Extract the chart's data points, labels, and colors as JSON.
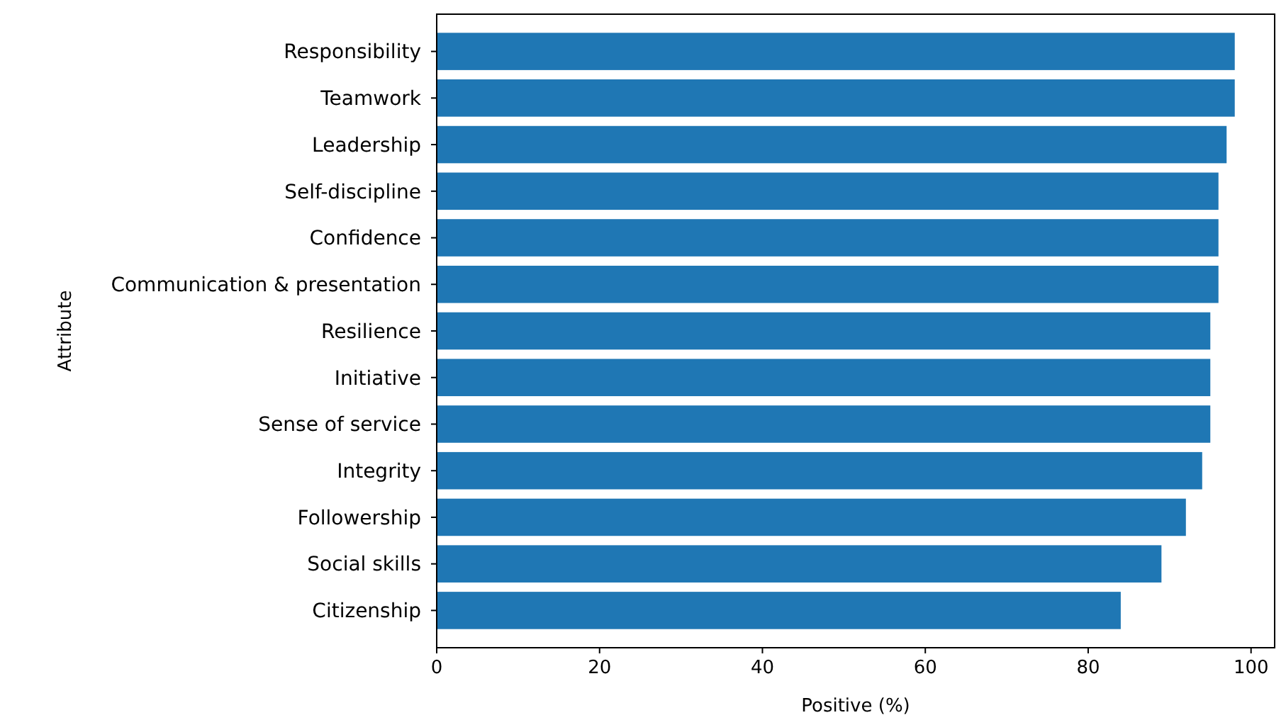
{
  "chart_data": {
    "type": "bar",
    "orientation": "horizontal",
    "xlabel": "Positive (%)",
    "ylabel": "Attribute",
    "categories": [
      "Responsibility",
      "Teamwork",
      "Leadership",
      "Self-discipline",
      "Confidence",
      "Communication & presentation",
      "Resilience",
      "Initiative",
      "Sense of service",
      "Integrity",
      "Followership",
      "Social skills",
      "Citizenship"
    ],
    "values": [
      98,
      98,
      97,
      96,
      96,
      96,
      95,
      95,
      95,
      94,
      92,
      89,
      84
    ],
    "color": "#1f77b4",
    "xlim": [
      0,
      102.9
    ],
    "xticks": [
      0,
      20,
      40,
      60,
      80,
      100
    ],
    "grid": false
  }
}
